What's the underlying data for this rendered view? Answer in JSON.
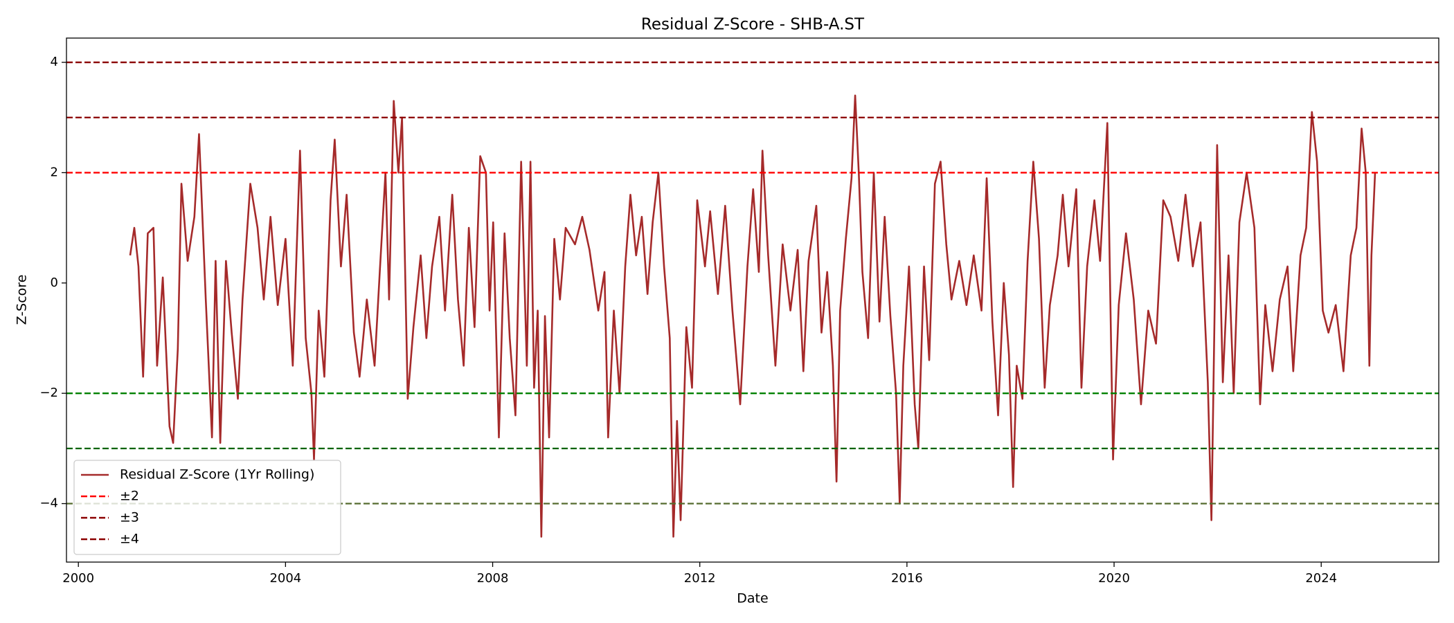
{
  "chart_data": {
    "type": "line",
    "title": "Residual Z-Score - SHB-A.ST",
    "x_label": "Date",
    "y_label": "Z-Score",
    "xlim": [
      1999.77,
      2026.27
    ],
    "ylim": [
      -5.06,
      4.44
    ],
    "xticks": [
      2000,
      2004,
      2008,
      2012,
      2016,
      2020,
      2024
    ],
    "yticks": [
      {
        "value": -4,
        "label": "−4"
      },
      {
        "value": -2,
        "label": "−2"
      },
      0,
      2,
      4
    ],
    "legend": "lower left",
    "x": [
      2001.0,
      2001.08,
      2001.16,
      2001.25,
      2001.34,
      2001.45,
      2001.52,
      2001.63,
      2001.76,
      2001.83,
      2001.92,
      2001.99,
      2002.11,
      2002.24,
      2002.33,
      2002.46,
      2002.58,
      2002.65,
      2002.74,
      2002.85,
      2002.96,
      2003.08,
      2003.17,
      2003.32,
      2003.46,
      2003.58,
      2003.71,
      2003.85,
      2004.0,
      2004.14,
      2004.28,
      2004.39,
      2004.5,
      2004.55,
      2004.64,
      2004.75,
      2004.87,
      2004.95,
      2005.07,
      2005.18,
      2005.32,
      2005.43,
      2005.57,
      2005.72,
      2005.82,
      2005.93,
      2006.0,
      2006.09,
      2006.18,
      2006.25,
      2006.36,
      2006.47,
      2006.61,
      2006.72,
      2006.83,
      2006.97,
      2007.08,
      2007.22,
      2007.33,
      2007.44,
      2007.54,
      2007.65,
      2007.76,
      2007.87,
      2007.94,
      2008.01,
      2008.12,
      2008.23,
      2008.33,
      2008.44,
      2008.55,
      2008.66,
      2008.73,
      2008.8,
      2008.87,
      2008.94,
      2009.01,
      2009.09,
      2009.19,
      2009.3,
      2009.41,
      2009.59,
      2009.73,
      2009.87,
      2010.04,
      2010.16,
      2010.23,
      2010.34,
      2010.45,
      2010.56,
      2010.66,
      2010.77,
      2010.88,
      2010.99,
      2011.09,
      2011.2,
      2011.31,
      2011.42,
      2011.49,
      2011.56,
      2011.63,
      2011.74,
      2011.85,
      2011.95,
      2012.1,
      2012.2,
      2012.35,
      2012.49,
      2012.63,
      2012.78,
      2012.92,
      2013.03,
      2013.14,
      2013.21,
      2013.32,
      2013.46,
      2013.6,
      2013.75,
      2013.89,
      2014.0,
      2014.1,
      2014.25,
      2014.35,
      2014.46,
      2014.57,
      2014.64,
      2014.71,
      2014.82,
      2014.93,
      2015.0,
      2015.07,
      2015.14,
      2015.25,
      2015.36,
      2015.47,
      2015.57,
      2015.68,
      2015.79,
      2015.86,
      2015.93,
      2016.04,
      2016.15,
      2016.22,
      2016.33,
      2016.43,
      2016.54,
      2016.65,
      2016.76,
      2016.86,
      2017.01,
      2017.15,
      2017.29,
      2017.44,
      2017.54,
      2017.65,
      2017.76,
      2017.87,
      2017.97,
      2018.05,
      2018.12,
      2018.23,
      2018.33,
      2018.44,
      2018.55,
      2018.66,
      2018.76,
      2018.91,
      2019.01,
      2019.12,
      2019.27,
      2019.37,
      2019.48,
      2019.62,
      2019.73,
      2019.87,
      2019.98,
      2020.09,
      2020.23,
      2020.38,
      2020.52,
      2020.66,
      2020.81,
      2020.95,
      2021.09,
      2021.24,
      2021.38,
      2021.52,
      2021.67,
      2021.81,
      2021.88,
      2021.99,
      2022.1,
      2022.21,
      2022.31,
      2022.42,
      2022.56,
      2022.71,
      2022.82,
      2022.92,
      2023.06,
      2023.2,
      2023.35,
      2023.46,
      2023.6,
      2023.71,
      2023.82,
      2023.92,
      2024.03,
      2024.14,
      2024.28,
      2024.43,
      2024.57,
      2024.68,
      2024.78,
      2024.86,
      2024.93,
      2024.97,
      2025.04
    ],
    "series": [
      {
        "name": "Residual Z-Score (1Yr Rolling)",
        "color": "#a52a2a",
        "values": [
          0.5,
          1.0,
          0.3,
          -1.7,
          0.9,
          1.0,
          -1.5,
          0.1,
          -2.6,
          -2.9,
          -1.2,
          1.8,
          0.4,
          1.2,
          2.7,
          -0.3,
          -2.8,
          0.4,
          -2.9,
          0.4,
          -0.9,
          -2.1,
          -0.3,
          1.8,
          1.0,
          -0.3,
          1.2,
          -0.4,
          0.8,
          -1.5,
          2.4,
          -1.0,
          -2.0,
          -3.2,
          -0.5,
          -1.7,
          1.5,
          2.6,
          0.3,
          1.6,
          -0.9,
          -1.7,
          -0.3,
          -1.5,
          0.2,
          2.0,
          -0.3,
          3.3,
          2.0,
          3.0,
          -2.1,
          -0.8,
          0.5,
          -1.0,
          0.3,
          1.2,
          -0.5,
          1.6,
          -0.3,
          -1.5,
          1.0,
          -0.8,
          2.3,
          2.0,
          -0.5,
          1.1,
          -2.8,
          0.9,
          -1.0,
          -2.4,
          2.2,
          -1.5,
          2.2,
          -1.9,
          -0.5,
          -4.6,
          -0.6,
          -2.8,
          0.8,
          -0.3,
          1.0,
          0.7,
          1.2,
          0.6,
          -0.5,
          0.2,
          -2.8,
          -0.5,
          -2.0,
          0.3,
          1.6,
          0.5,
          1.2,
          -0.2,
          1.1,
          2.0,
          0.3,
          -1.0,
          -4.6,
          -2.5,
          -4.3,
          -0.8,
          -1.9,
          1.5,
          0.3,
          1.3,
          -0.2,
          1.4,
          -0.5,
          -2.2,
          0.3,
          1.7,
          0.2,
          2.4,
          0.5,
          -1.5,
          0.7,
          -0.5,
          0.6,
          -1.6,
          0.4,
          1.4,
          -0.9,
          0.2,
          -1.5,
          -3.6,
          -0.5,
          0.8,
          1.9,
          3.4,
          2.0,
          0.2,
          -1.0,
          2.0,
          -0.7,
          1.2,
          -0.6,
          -2.0,
          -4.0,
          -1.5,
          0.3,
          -2.2,
          -3.0,
          0.3,
          -1.4,
          1.8,
          2.2,
          0.7,
          -0.3,
          0.4,
          -0.4,
          0.5,
          -0.5,
          1.9,
          -0.7,
          -2.4,
          0.0,
          -1.3,
          -3.7,
          -1.5,
          -2.1,
          0.4,
          2.2,
          0.8,
          -1.9,
          -0.4,
          0.5,
          1.6,
          0.3,
          1.7,
          -1.9,
          0.3,
          1.5,
          0.4,
          2.9,
          -3.2,
          -0.4,
          0.9,
          -0.3,
          -2.2,
          -0.5,
          -1.1,
          1.5,
          1.2,
          0.4,
          1.6,
          0.3,
          1.1,
          -1.8,
          -4.3,
          2.5,
          -1.8,
          0.5,
          -2.0,
          1.1,
          2.0,
          1.0,
          -2.2,
          -0.4,
          -1.6,
          -0.3,
          0.3,
          -1.6,
          0.5,
          1.0,
          3.1,
          2.2,
          -0.5,
          -0.9,
          -0.4,
          -1.6,
          0.5,
          1.0,
          2.8,
          2.0,
          -1.5,
          0.5,
          2.0
        ]
      }
    ],
    "reference_lines": [
      {
        "name": "±2",
        "color": "#ff0000",
        "lines": [
          {
            "value": 2,
            "color": "#ff0000"
          },
          {
            "value": -2,
            "color": "#008000"
          }
        ]
      },
      {
        "name": "±3",
        "color": "#8b0000",
        "lines": [
          {
            "value": 3,
            "color": "#8b0000"
          },
          {
            "value": -3,
            "color": "#006400"
          }
        ]
      },
      {
        "name": "±4",
        "color": "#8b0000",
        "lines": [
          {
            "value": 4,
            "color": "#8b0000"
          },
          {
            "value": -4,
            "color": "#556b2f"
          }
        ]
      }
    ]
  }
}
